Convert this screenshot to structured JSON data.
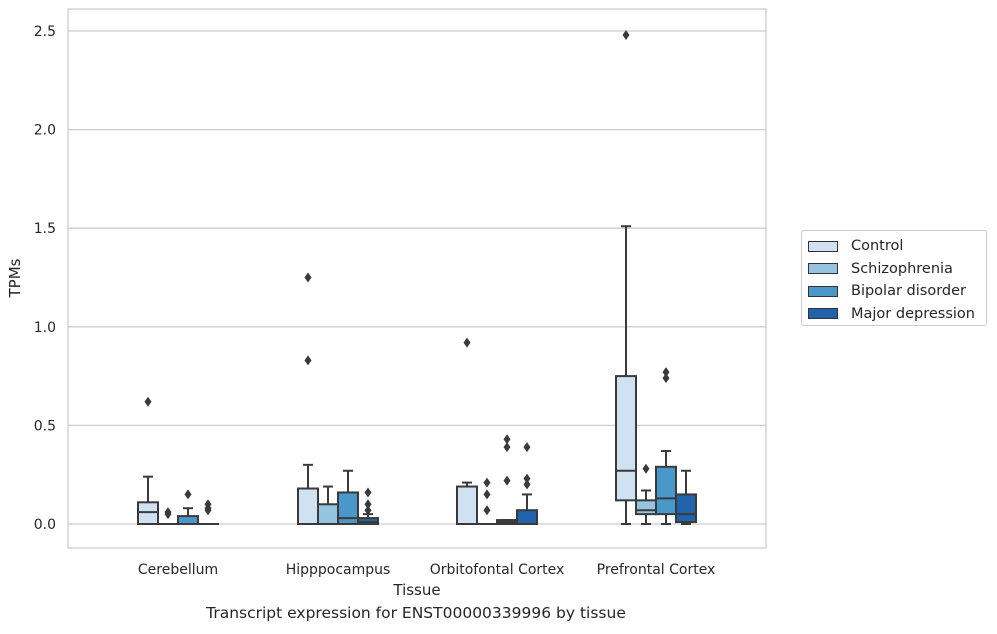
{
  "chart_data": {
    "type": "box",
    "title": "",
    "caption": "Transcript expression for ENST00000339996 by tissue",
    "xlabel": "Tissue",
    "ylabel": "TPMs",
    "ylim": [
      -0.12,
      2.62
    ],
    "yticks": [
      "0.0",
      "0.5",
      "1.0",
      "1.5",
      "2.0",
      "2.5"
    ],
    "ytick_values": [
      0,
      0.5,
      1.0,
      1.5,
      2.0,
      2.5
    ],
    "grid": true,
    "legend_position": "right",
    "categories": [
      "Cerebellum",
      "Hipppocampus",
      "Orbitofontal Cortex",
      "Prefrontal Cortex"
    ],
    "series": [
      {
        "name": "Control",
        "color": "#d0e1f2",
        "boxes": [
          {
            "whislo": 0,
            "q1": 0,
            "med": 0.06,
            "q3": 0.11,
            "whishi": 0.24,
            "fliers": [
              0.62
            ]
          },
          {
            "whislo": 0,
            "q1": 0,
            "med": 0,
            "q3": 0.18,
            "whishi": 0.3,
            "fliers": [
              0.83,
              1.25
            ]
          },
          {
            "whislo": 0,
            "q1": 0,
            "med": 0,
            "q3": 0.19,
            "whishi": 0.21,
            "fliers": [
              0.92
            ]
          },
          {
            "whislo": 0,
            "q1": 0.12,
            "med": 0.27,
            "q3": 0.75,
            "whishi": 1.51,
            "fliers": [
              2.48
            ]
          }
        ]
      },
      {
        "name": "Schizophrenia",
        "color": "#94c4df",
        "boxes": [
          {
            "whislo": 0,
            "q1": 0,
            "med": 0,
            "q3": 0,
            "whishi": 0,
            "fliers": [
              0.05,
              0.06
            ]
          },
          {
            "whislo": 0,
            "q1": 0,
            "med": 0,
            "q3": 0.1,
            "whishi": 0.19,
            "fliers": []
          },
          {
            "whislo": 0,
            "q1": 0,
            "med": 0,
            "q3": 0,
            "whishi": 0,
            "fliers": [
              0.07,
              0.15,
              0.21
            ]
          },
          {
            "whislo": 0,
            "q1": 0.05,
            "med": 0.07,
            "q3": 0.12,
            "whishi": 0.17,
            "fliers": [
              0.28
            ]
          }
        ]
      },
      {
        "name": "Bipolar disorder",
        "color": "#4a98c9",
        "boxes": [
          {
            "whislo": 0,
            "q1": 0,
            "med": 0,
            "q3": 0.04,
            "whishi": 0.08,
            "fliers": [
              0.15
            ]
          },
          {
            "whislo": 0,
            "q1": 0,
            "med": 0.03,
            "q3": 0.16,
            "whishi": 0.27,
            "fliers": []
          },
          {
            "whislo": 0,
            "q1": 0,
            "med": 0.01,
            "q3": 0.02,
            "whishi": 0.02,
            "fliers": [
              0.22,
              0.39,
              0.43
            ]
          },
          {
            "whislo": 0,
            "q1": 0.05,
            "med": 0.13,
            "q3": 0.29,
            "whishi": 0.37,
            "fliers": [
              0.74,
              0.77
            ]
          }
        ]
      },
      {
        "name": "Major depression",
        "color": "#2163aa",
        "boxes": [
          {
            "whislo": 0,
            "q1": 0,
            "med": 0,
            "q3": 0,
            "whishi": 0,
            "fliers": [
              0.07,
              0.08,
              0.1
            ]
          },
          {
            "whislo": 0,
            "q1": 0,
            "med": 0.01,
            "q3": 0.03,
            "whishi": 0.05,
            "fliers": [
              0.07,
              0.1,
              0.16
            ]
          },
          {
            "whislo": 0,
            "q1": 0,
            "med": 0,
            "q3": 0.07,
            "whishi": 0.15,
            "fliers": [
              0.2,
              0.23,
              0.39
            ]
          },
          {
            "whislo": 0,
            "q1": 0.01,
            "med": 0.05,
            "q3": 0.15,
            "whishi": 0.27,
            "fliers": []
          }
        ]
      }
    ]
  }
}
